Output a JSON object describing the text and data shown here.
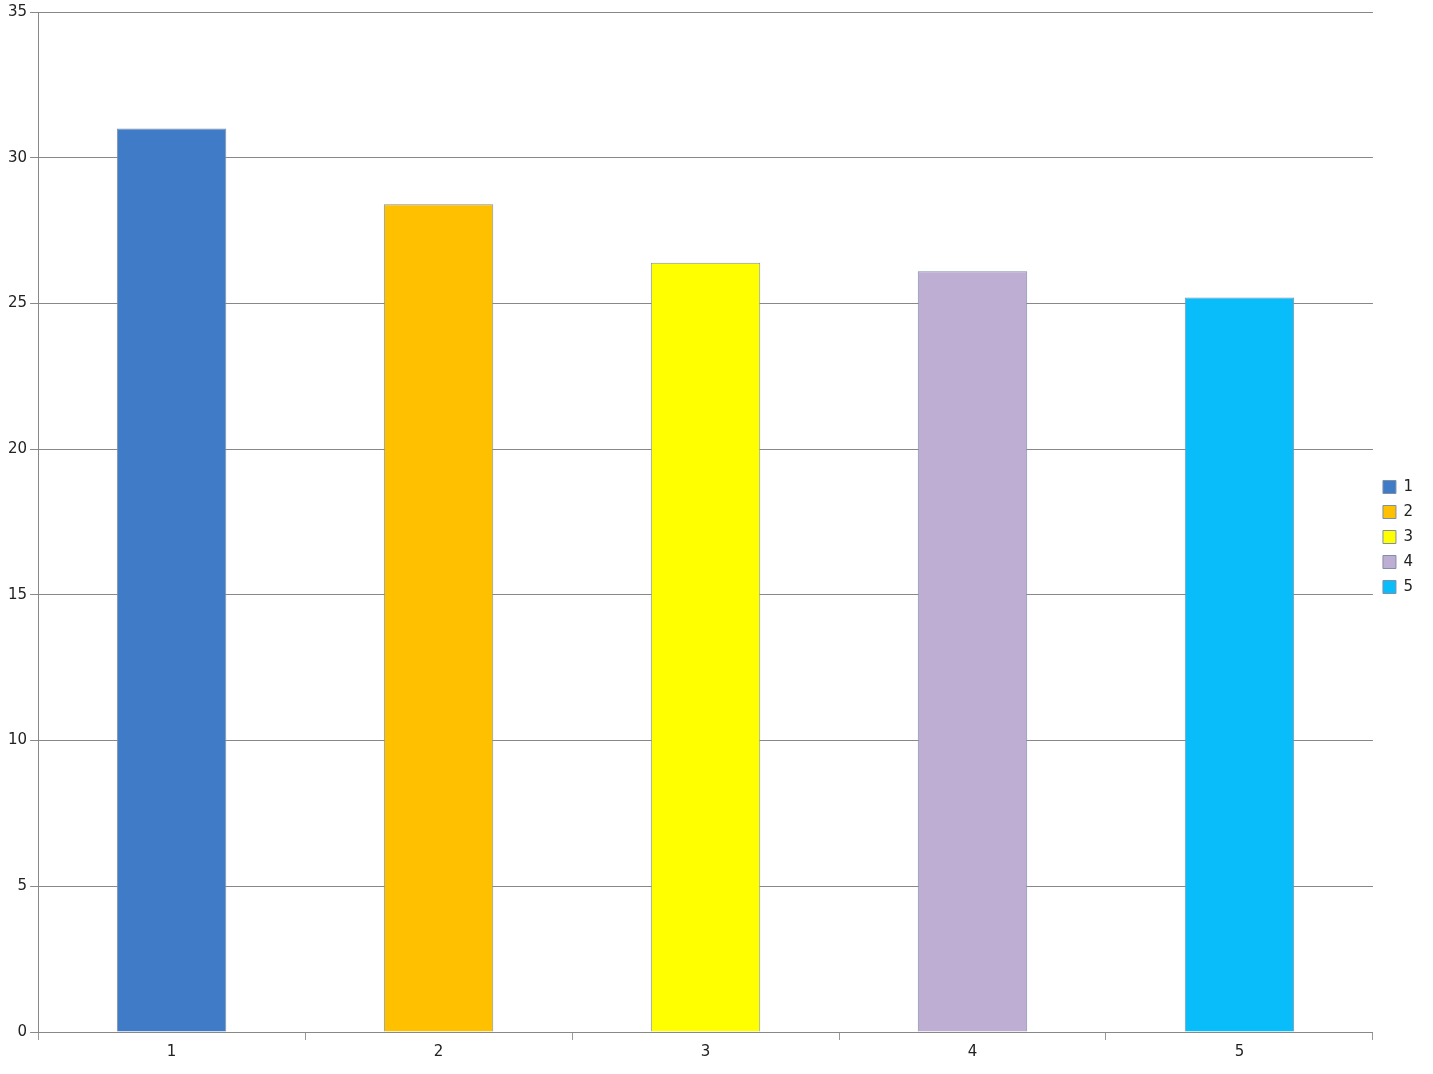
{
  "chart_data": {
    "type": "bar",
    "categories": [
      "1",
      "2",
      "3",
      "4",
      "5"
    ],
    "series": [
      {
        "name": "1",
        "color": "#3f7bc6",
        "values": [
          31.0,
          null,
          null,
          null,
          null
        ]
      },
      {
        "name": "2",
        "color": "#ffc000",
        "values": [
          null,
          28.4,
          null,
          null,
          null
        ]
      },
      {
        "name": "3",
        "color": "#ffff00",
        "values": [
          null,
          null,
          26.4,
          null,
          null
        ]
      },
      {
        "name": "4",
        "color": "#bfaed4",
        "values": [
          null,
          null,
          null,
          26.1,
          null
        ]
      },
      {
        "name": "5",
        "color": "#08bdf9",
        "values": [
          null,
          null,
          null,
          null,
          25.2
        ]
      }
    ],
    "ylim": [
      0,
      35
    ],
    "yticks": [
      0,
      5,
      10,
      15,
      20,
      25,
      30,
      35
    ],
    "grid": "y",
    "legend": "right"
  }
}
